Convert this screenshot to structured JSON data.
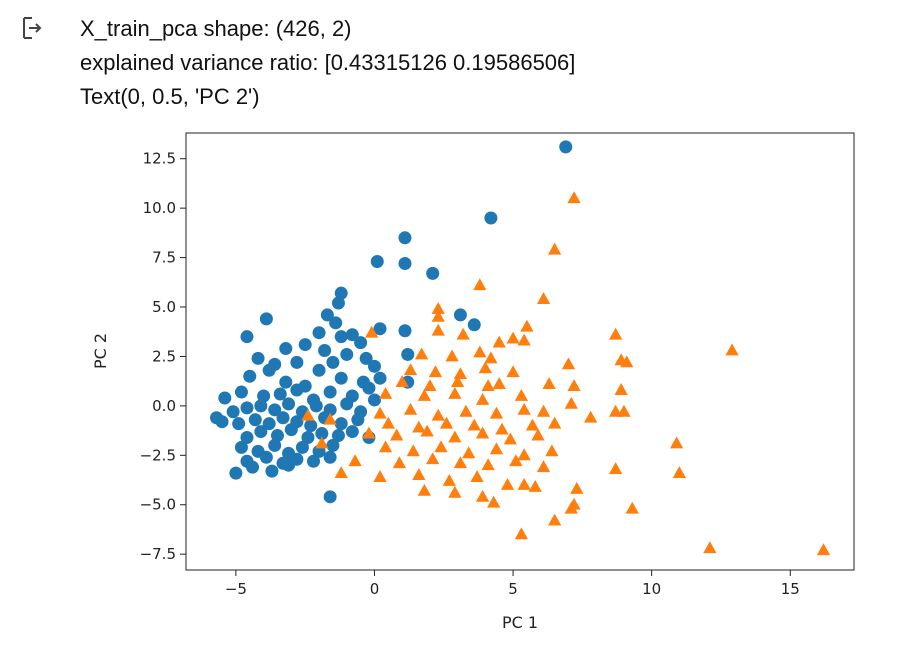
{
  "output": {
    "icon": "output-arrow-icon",
    "lines": [
      "X_train_pca shape: (426, 2)",
      "explained variance ratio: [0.43315126 0.19586506]",
      "Text(0, 0.5, 'PC 2')"
    ]
  },
  "chart_data": {
    "type": "scatter",
    "xlabel": "PC 1",
    "ylabel": "PC 2",
    "xlim": [
      -6.8,
      17.3
    ],
    "ylim": [
      -8.3,
      13.8
    ],
    "xticks": [
      -5,
      0,
      5,
      10,
      15
    ],
    "xtick_labels": [
      "−5",
      "0",
      "5",
      "10",
      "15"
    ],
    "yticks": [
      -7.5,
      -5.0,
      -2.5,
      0.0,
      2.5,
      5.0,
      7.5,
      10.0,
      12.5
    ],
    "ytick_labels": [
      "−7.5",
      "−5.0",
      "−2.5",
      "0.0",
      "2.5",
      "5.0",
      "7.5",
      "10.0",
      "12.5"
    ],
    "grid": false,
    "series": [
      {
        "marker": "circle",
        "color": "#1f77b4",
        "points": [
          [
            6.9,
            13.1
          ],
          [
            4.2,
            9.5
          ],
          [
            1.1,
            8.5
          ],
          [
            0.1,
            7.3
          ],
          [
            1.1,
            7.2
          ],
          [
            2.1,
            6.7
          ],
          [
            -1.2,
            5.7
          ],
          [
            -1.3,
            5.2
          ],
          [
            -1.7,
            4.6
          ],
          [
            -1.4,
            4.2
          ],
          [
            -3.9,
            4.4
          ],
          [
            3.1,
            4.6
          ],
          [
            3.6,
            4.1
          ],
          [
            -4.6,
            3.5
          ],
          [
            -2.0,
            3.7
          ],
          [
            -1.2,
            3.5
          ],
          [
            -0.8,
            3.6
          ],
          [
            -0.5,
            3.2
          ],
          [
            0.2,
            3.9
          ],
          [
            1.1,
            3.8
          ],
          [
            -2.5,
            3.1
          ],
          [
            -3.2,
            2.9
          ],
          [
            1.2,
            2.6
          ],
          [
            -4.2,
            2.4
          ],
          [
            -3.6,
            2.1
          ],
          [
            -2.8,
            2.2
          ],
          [
            -1.8,
            2.8
          ],
          [
            -1.0,
            2.6
          ],
          [
            -0.3,
            2.4
          ],
          [
            0.0,
            2.0
          ],
          [
            -4.5,
            1.5
          ],
          [
            -3.8,
            1.8
          ],
          [
            -2.0,
            1.8
          ],
          [
            -1.5,
            2.2
          ],
          [
            0.2,
            1.4
          ],
          [
            -3.2,
            1.2
          ],
          [
            -2.5,
            1.0
          ],
          [
            -1.2,
            1.4
          ],
          [
            -0.4,
            1.2
          ],
          [
            1.2,
            1.2
          ],
          [
            -5.4,
            0.4
          ],
          [
            -4.8,
            0.7
          ],
          [
            -4.0,
            0.5
          ],
          [
            -3.4,
            0.6
          ],
          [
            -2.8,
            0.8
          ],
          [
            -2.2,
            0.3
          ],
          [
            -1.6,
            0.7
          ],
          [
            -0.8,
            0.5
          ],
          [
            -0.2,
            0.9
          ],
          [
            -5.7,
            -0.6
          ],
          [
            -5.1,
            -0.3
          ],
          [
            -4.6,
            -0.1
          ],
          [
            -4.1,
            0.0
          ],
          [
            -3.6,
            -0.2
          ],
          [
            -3.1,
            0.1
          ],
          [
            -2.6,
            -0.3
          ],
          [
            -2.1,
            0.0
          ],
          [
            -1.6,
            -0.2
          ],
          [
            -1.0,
            0.1
          ],
          [
            -0.5,
            -0.3
          ],
          [
            0.0,
            0.3
          ],
          [
            -5.5,
            -0.8
          ],
          [
            -4.9,
            -0.9
          ],
          [
            -4.3,
            -0.7
          ],
          [
            -3.8,
            -0.9
          ],
          [
            -3.3,
            -0.6
          ],
          [
            -2.8,
            -0.8
          ],
          [
            -2.3,
            -1.0
          ],
          [
            -1.8,
            -0.6
          ],
          [
            -1.2,
            -0.9
          ],
          [
            -0.6,
            -0.7
          ],
          [
            -4.6,
            -1.6
          ],
          [
            -4.1,
            -1.3
          ],
          [
            -3.5,
            -1.5
          ],
          [
            -3.0,
            -1.2
          ],
          [
            -2.4,
            -1.6
          ],
          [
            -1.9,
            -1.4
          ],
          [
            -1.3,
            -1.5
          ],
          [
            -0.8,
            -1.3
          ],
          [
            -0.2,
            -1.6
          ],
          [
            -4.8,
            -2.1
          ],
          [
            -4.2,
            -2.3
          ],
          [
            -3.6,
            -2.0
          ],
          [
            -3.1,
            -2.4
          ],
          [
            -2.6,
            -2.1
          ],
          [
            -2.0,
            -2.3
          ],
          [
            -1.5,
            -2.0
          ],
          [
            -4.6,
            -2.8
          ],
          [
            -3.9,
            -2.6
          ],
          [
            -3.3,
            -2.9
          ],
          [
            -2.8,
            -2.7
          ],
          [
            -2.2,
            -2.8
          ],
          [
            -1.6,
            -2.6
          ],
          [
            -5.0,
            -3.4
          ],
          [
            -4.4,
            -3.1
          ],
          [
            -3.7,
            -3.3
          ],
          [
            -3.1,
            -3.0
          ],
          [
            -1.6,
            -4.6
          ]
        ]
      },
      {
        "marker": "triangle",
        "color": "#ff7f0e",
        "points": [
          [
            7.2,
            10.5
          ],
          [
            6.5,
            7.9
          ],
          [
            3.8,
            6.1
          ],
          [
            6.1,
            5.4
          ],
          [
            2.3,
            4.9
          ],
          [
            2.3,
            4.5
          ],
          [
            5.5,
            4.0
          ],
          [
            8.7,
            3.6
          ],
          [
            3.2,
            3.6
          ],
          [
            4.5,
            3.2
          ],
          [
            5.0,
            3.4
          ],
          [
            5.4,
            3.3
          ],
          [
            -0.1,
            3.7
          ],
          [
            2.3,
            3.8
          ],
          [
            12.9,
            2.8
          ],
          [
            8.9,
            2.3
          ],
          [
            9.1,
            2.2
          ],
          [
            7.0,
            2.1
          ],
          [
            1.7,
            2.6
          ],
          [
            2.8,
            2.5
          ],
          [
            3.8,
            2.7
          ],
          [
            4.2,
            2.4
          ],
          [
            1.3,
            1.8
          ],
          [
            2.2,
            1.7
          ],
          [
            3.1,
            1.6
          ],
          [
            4.0,
            1.9
          ],
          [
            5.0,
            1.7
          ],
          [
            1.0,
            1.2
          ],
          [
            2.0,
            1.0
          ],
          [
            3.0,
            1.2
          ],
          [
            4.1,
            1.0
          ],
          [
            4.5,
            1.1
          ],
          [
            6.3,
            1.1
          ],
          [
            7.2,
            1.0
          ],
          [
            8.9,
            0.8
          ],
          [
            0.4,
            0.6
          ],
          [
            1.8,
            0.5
          ],
          [
            2.9,
            0.6
          ],
          [
            3.9,
            0.3
          ],
          [
            5.3,
            0.5
          ],
          [
            7.1,
            0.1
          ],
          [
            8.7,
            -0.3
          ],
          [
            9.0,
            -0.3
          ],
          [
            0.2,
            -0.4
          ],
          [
            1.3,
            -0.2
          ],
          [
            2.3,
            -0.5
          ],
          [
            3.3,
            -0.3
          ],
          [
            4.4,
            -0.4
          ],
          [
            5.4,
            -0.2
          ],
          [
            6.1,
            -0.3
          ],
          [
            7.8,
            -0.6
          ],
          [
            -2.4,
            -0.5
          ],
          [
            -1.6,
            -0.7
          ],
          [
            0.5,
            -0.9
          ],
          [
            1.6,
            -1.1
          ],
          [
            2.6,
            -0.9
          ],
          [
            3.6,
            -1.0
          ],
          [
            4.6,
            -1.2
          ],
          [
            5.7,
            -1.0
          ],
          [
            6.5,
            -0.9
          ],
          [
            -0.2,
            -1.4
          ],
          [
            0.8,
            -1.5
          ],
          [
            1.9,
            -1.3
          ],
          [
            2.9,
            -1.6
          ],
          [
            3.9,
            -1.4
          ],
          [
            4.9,
            -1.7
          ],
          [
            5.9,
            -1.5
          ],
          [
            10.9,
            -1.9
          ],
          [
            -1.9,
            -1.9
          ],
          [
            0.4,
            -2.1
          ],
          [
            1.4,
            -2.3
          ],
          [
            2.4,
            -2.1
          ],
          [
            3.4,
            -2.4
          ],
          [
            4.4,
            -2.2
          ],
          [
            5.4,
            -2.5
          ],
          [
            6.4,
            -2.3
          ],
          [
            -0.7,
            -2.8
          ],
          [
            0.9,
            -2.9
          ],
          [
            2.1,
            -2.7
          ],
          [
            3.1,
            -2.9
          ],
          [
            4.1,
            -3.0
          ],
          [
            5.1,
            -2.8
          ],
          [
            6.1,
            -3.1
          ],
          [
            8.7,
            -3.2
          ],
          [
            11.0,
            -3.4
          ],
          [
            -1.2,
            -3.4
          ],
          [
            0.2,
            -3.6
          ],
          [
            1.6,
            -3.5
          ],
          [
            2.7,
            -3.8
          ],
          [
            3.7,
            -3.6
          ],
          [
            4.8,
            -4.0
          ],
          [
            5.4,
            -4.0
          ],
          [
            5.8,
            -4.1
          ],
          [
            7.3,
            -4.2
          ],
          [
            1.8,
            -4.3
          ],
          [
            2.9,
            -4.4
          ],
          [
            3.9,
            -4.6
          ],
          [
            4.3,
            -4.9
          ],
          [
            7.2,
            -5.0
          ],
          [
            7.1,
            -5.2
          ],
          [
            9.3,
            -5.2
          ],
          [
            6.5,
            -5.8
          ],
          [
            5.3,
            -6.5
          ],
          [
            12.1,
            -7.2
          ],
          [
            16.2,
            -7.3
          ]
        ]
      }
    ]
  }
}
